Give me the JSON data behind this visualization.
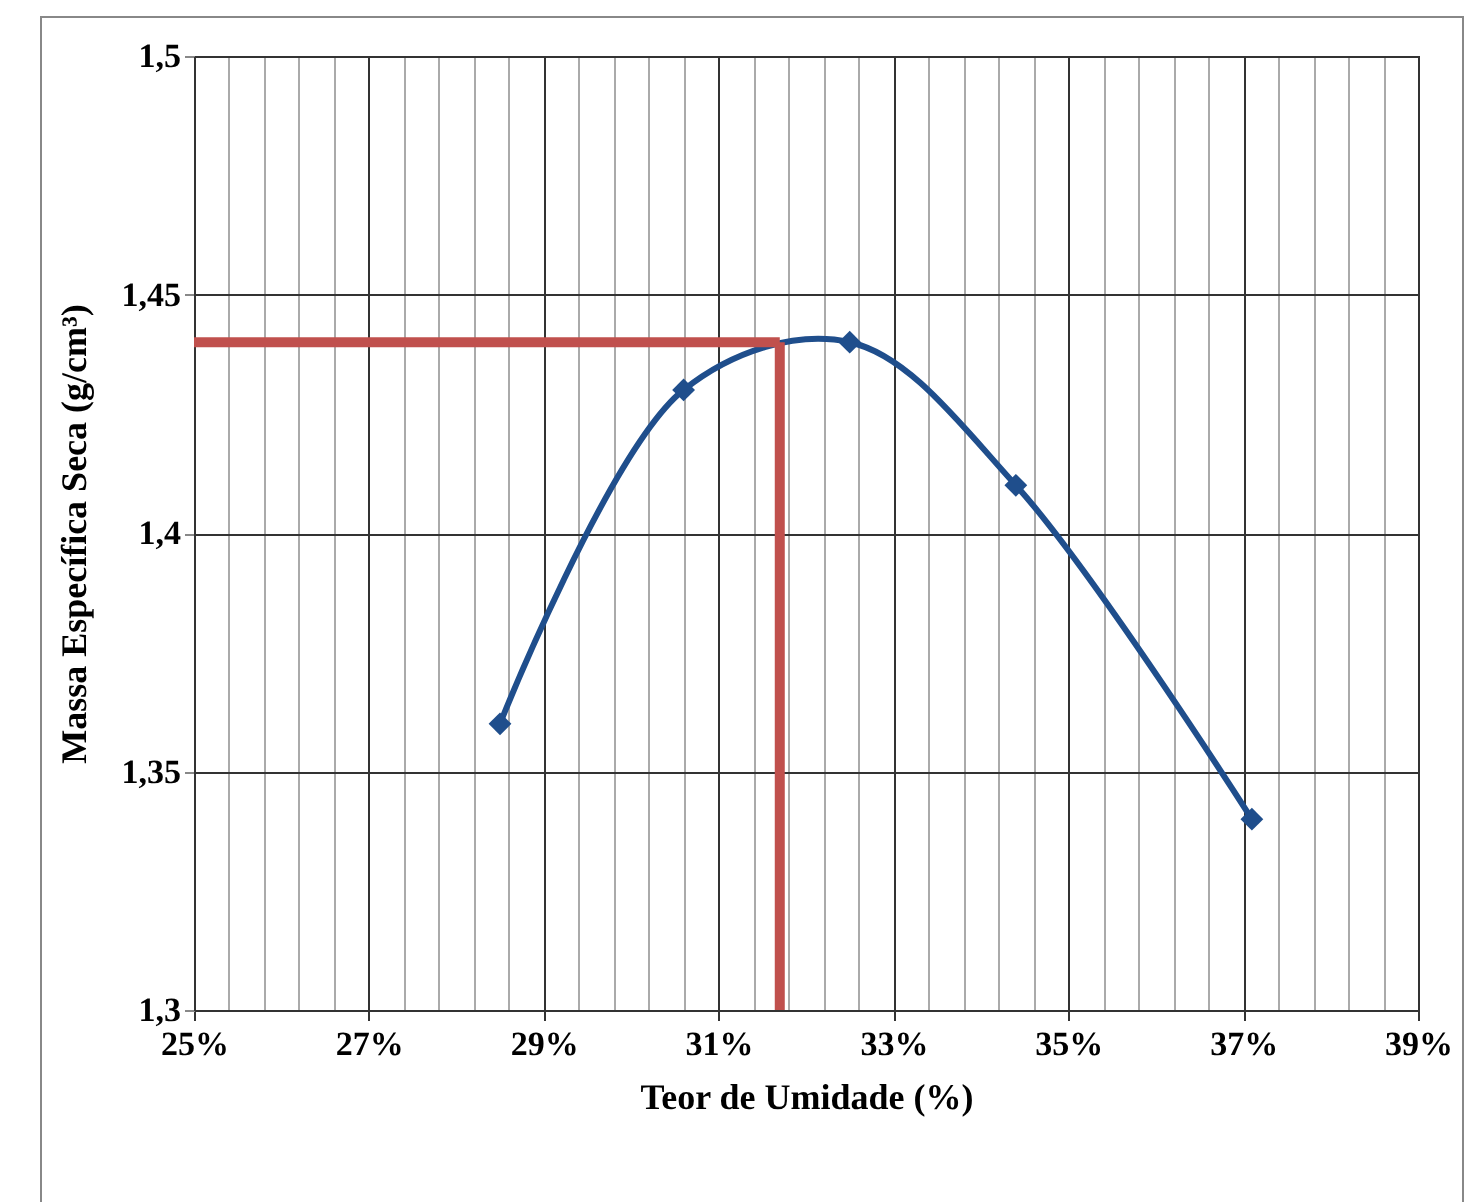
{
  "chart_data": {
    "type": "line",
    "xlabel": "Teor de Umidade (%)",
    "ylabel": "Massa Específica Seca (g/cm³)",
    "x": [
      28.5,
      30.6,
      32.5,
      34.4,
      37.1
    ],
    "series": [
      {
        "color": "#1f4e8c",
        "values": [
          1.36,
          1.43,
          1.44,
          1.41,
          1.34
        ]
      }
    ],
    "xlim": [
      25,
      39
    ],
    "xticks": [
      {
        "value": 25,
        "label": "25%"
      },
      {
        "value": 25.4,
        "label": null
      },
      {
        "value": 25.8,
        "label": null
      },
      {
        "value": 26.2,
        "label": null
      },
      {
        "value": 26.6,
        "label": null
      },
      {
        "value": 27,
        "label": "27%"
      },
      {
        "value": 27.4,
        "label": null
      },
      {
        "value": 27.8,
        "label": null
      },
      {
        "value": 28.2,
        "label": null
      },
      {
        "value": 28.6,
        "label": null
      },
      {
        "value": 29,
        "label": "29%"
      },
      {
        "value": 29.4,
        "label": null
      },
      {
        "value": 29.8,
        "label": null
      },
      {
        "value": 30.2,
        "label": null
      },
      {
        "value": 30.6,
        "label": null
      },
      {
        "value": 31,
        "label": "31%"
      },
      {
        "value": 31.4,
        "label": null
      },
      {
        "value": 31.8,
        "label": null
      },
      {
        "value": 32.2,
        "label": null
      },
      {
        "value": 32.6,
        "label": null
      },
      {
        "value": 33,
        "label": "33%"
      },
      {
        "value": 33.4,
        "label": null
      },
      {
        "value": 33.8,
        "label": null
      },
      {
        "value": 34.2,
        "label": null
      },
      {
        "value": 34.6,
        "label": null
      },
      {
        "value": 35,
        "label": "35%"
      },
      {
        "value": 35.4,
        "label": null
      },
      {
        "value": 35.8,
        "label": null
      },
      {
        "value": 36.2,
        "label": null
      },
      {
        "value": 36.6,
        "label": null
      },
      {
        "value": 37,
        "label": "37%"
      },
      {
        "value": 37.4,
        "label": null
      },
      {
        "value": 37.8,
        "label": null
      },
      {
        "value": 38.2,
        "label": null
      },
      {
        "value": 38.6,
        "label": null
      },
      {
        "value": 39,
        "label": "39%"
      }
    ],
    "ylim": [
      1.3,
      1.5
    ],
    "yticks": [
      {
        "value": 1.3,
        "label": "1,3"
      },
      {
        "value": 1.35,
        "label": "1,35"
      },
      {
        "value": 1.4,
        "label": "1,4"
      },
      {
        "value": 1.45,
        "label": "1,45"
      },
      {
        "value": 1.5,
        "label": "1,5"
      }
    ],
    "grid": true,
    "marker": "diamond",
    "line_style": "solid",
    "ref_lines": [
      {
        "axis": "y",
        "value": 1.44,
        "color": "#c0504d"
      },
      {
        "axis": "x",
        "value": 31.7,
        "color": "#c0504d"
      }
    ]
  }
}
